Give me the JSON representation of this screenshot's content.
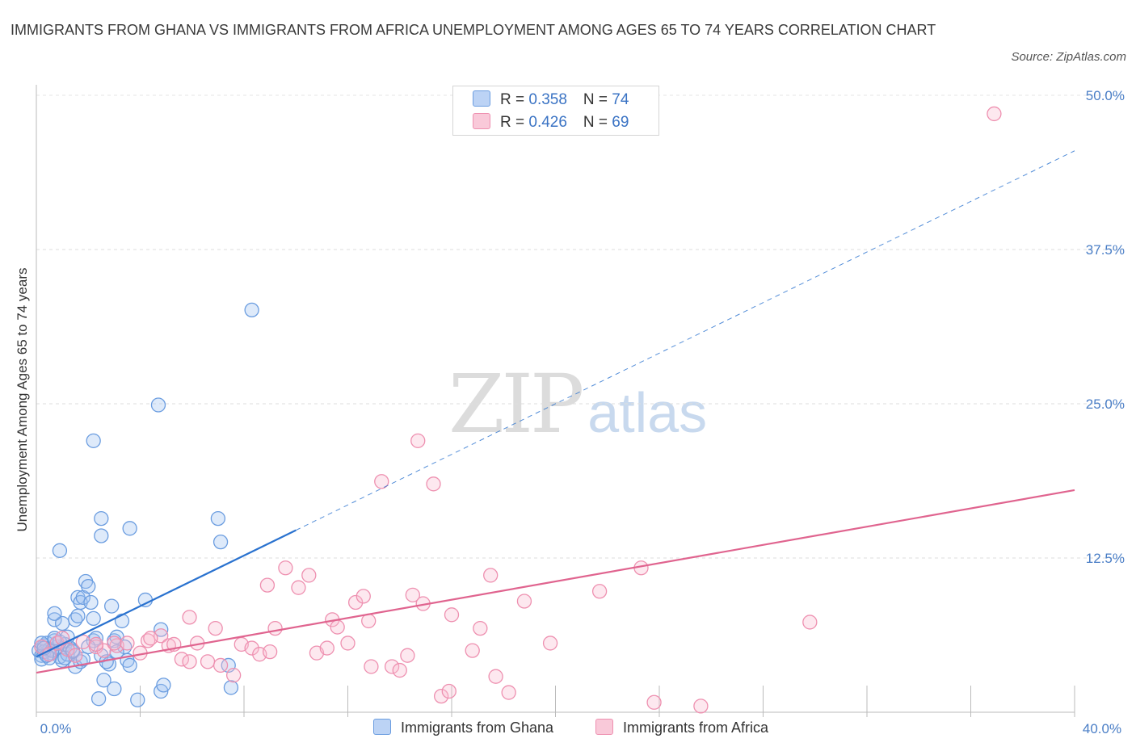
{
  "title": "IMMIGRANTS FROM GHANA VS IMMIGRANTS FROM AFRICA UNEMPLOYMENT AMONG AGES 65 TO 74 YEARS CORRELATION CHART",
  "source": "Source: ZipAtlas.com",
  "watermark": {
    "zip": "ZIP",
    "atlas": "atlas"
  },
  "legend": {
    "rows": [
      {
        "r_label": "R = ",
        "r_value": "0.358",
        "n_label": "N = ",
        "n_value": "74"
      },
      {
        "r_label": "R = ",
        "r_value": "0.426",
        "n_label": "N = ",
        "n_value": "69"
      }
    ]
  },
  "colors": {
    "ghana": "#6b9de0",
    "ghana_line": "#2a72cf",
    "africa": "#ee90b0",
    "africa_line": "#e0648f",
    "tick": "#4a7ec6"
  },
  "chart_data": {
    "type": "scatter",
    "title": "IMMIGRANTS FROM GHANA VS IMMIGRANTS FROM AFRICA UNEMPLOYMENT AMONG AGES 65 TO 74 YEARS CORRELATION CHART",
    "xlabel": "",
    "ylabel": "Unemployment Among Ages 65 to 74 years",
    "xlim": [
      0,
      40
    ],
    "ylim": [
      0,
      50
    ],
    "x_tick_labels": [
      "0.0%",
      "40.0%"
    ],
    "y_ticks": [
      {
        "value": 12.5,
        "label": "12.5%"
      },
      {
        "value": 25,
        "label": "25.0%"
      },
      {
        "value": 37.5,
        "label": "37.5%"
      },
      {
        "value": 50,
        "label": "50.0%"
      }
    ],
    "grid": "horizontal dashed",
    "legend_position": "bottom",
    "series": [
      {
        "name": "Immigrants from Ghana",
        "r": 0.358,
        "n": 74,
        "trend": {
          "x0": 0,
          "y0": 4.5,
          "x_solid_end": 10.0,
          "x1": 40,
          "y1": 45.5
        },
        "points": [
          [
            0.1,
            5.0
          ],
          [
            0.2,
            4.6
          ],
          [
            0.3,
            5.4
          ],
          [
            0.2,
            4.3
          ],
          [
            0.4,
            5.6
          ],
          [
            0.5,
            5.1
          ],
          [
            0.6,
            4.8
          ],
          [
            0.3,
            4.9
          ],
          [
            0.8,
            5.3
          ],
          [
            0.9,
            4.5
          ],
          [
            1.0,
            4.2
          ],
          [
            1.1,
            5.5
          ],
          [
            1.2,
            4.7
          ],
          [
            0.7,
            5.8
          ],
          [
            0.5,
            4.4
          ],
          [
            1.3,
            5.2
          ],
          [
            0.2,
            5.6
          ],
          [
            0.6,
            5.0
          ],
          [
            1.5,
            3.7
          ],
          [
            1.7,
            4.1
          ],
          [
            0.9,
            5.7
          ],
          [
            1.4,
            4.9
          ],
          [
            1.1,
            4.4
          ],
          [
            0.4,
            4.6
          ],
          [
            0.7,
            6.0
          ],
          [
            0.7,
            7.5
          ],
          [
            1.0,
            7.2
          ],
          [
            1.5,
            7.5
          ],
          [
            1.6,
            7.8
          ],
          [
            2.2,
            7.6
          ],
          [
            0.7,
            8.0
          ],
          [
            1.6,
            9.3
          ],
          [
            1.7,
            8.9
          ],
          [
            1.8,
            9.3
          ],
          [
            2.1,
            8.9
          ],
          [
            2.9,
            8.6
          ],
          [
            3.3,
            7.4
          ],
          [
            4.2,
            9.1
          ],
          [
            1.9,
            10.6
          ],
          [
            2.0,
            10.2
          ],
          [
            0.9,
            13.1
          ],
          [
            2.5,
            15.7
          ],
          [
            2.5,
            14.3
          ],
          [
            3.6,
            14.9
          ],
          [
            2.2,
            22.0
          ],
          [
            4.7,
            24.9
          ],
          [
            8.3,
            32.6
          ],
          [
            7.0,
            15.7
          ],
          [
            7.1,
            13.8
          ],
          [
            1.2,
            6.1
          ],
          [
            2.2,
            5.8
          ],
          [
            2.3,
            6.0
          ],
          [
            3.0,
            5.8
          ],
          [
            3.1,
            6.1
          ],
          [
            3.4,
            5.3
          ],
          [
            3.5,
            4.2
          ],
          [
            3.6,
            3.8
          ],
          [
            2.5,
            4.6
          ],
          [
            2.8,
            3.9
          ],
          [
            2.7,
            4.1
          ],
          [
            2.6,
            2.6
          ],
          [
            3.0,
            1.9
          ],
          [
            2.4,
            1.1
          ],
          [
            3.9,
            1.0
          ],
          [
            4.8,
            1.7
          ],
          [
            4.9,
            2.2
          ],
          [
            7.5,
            2.0
          ],
          [
            7.4,
            3.8
          ],
          [
            4.8,
            6.7
          ],
          [
            3.1,
            4.9
          ],
          [
            2.0,
            5.3
          ],
          [
            1.8,
            4.3
          ],
          [
            0.3,
            5.2
          ],
          [
            1.4,
            5.0
          ]
        ]
      },
      {
        "name": "Immigrants from Africa",
        "r": 0.426,
        "n": 69,
        "trend": {
          "x0": 0,
          "y0": 3.2,
          "x1": 40,
          "y1": 18.0
        },
        "points": [
          [
            0.2,
            5.3
          ],
          [
            0.5,
            4.7
          ],
          [
            0.8,
            5.6
          ],
          [
            1.2,
            5.1
          ],
          [
            1.5,
            4.6
          ],
          [
            1.8,
            5.7
          ],
          [
            2.3,
            5.3
          ],
          [
            2.6,
            5.0
          ],
          [
            3.1,
            5.4
          ],
          [
            3.5,
            5.6
          ],
          [
            4.0,
            4.8
          ],
          [
            4.3,
            5.8
          ],
          [
            4.8,
            6.2
          ],
          [
            5.1,
            5.4
          ],
          [
            5.3,
            5.5
          ],
          [
            5.6,
            4.3
          ],
          [
            5.9,
            4.1
          ],
          [
            6.2,
            5.6
          ],
          [
            6.6,
            4.1
          ],
          [
            7.1,
            3.8
          ],
          [
            7.6,
            3.0
          ],
          [
            7.9,
            5.5
          ],
          [
            8.3,
            5.2
          ],
          [
            8.6,
            4.7
          ],
          [
            9.0,
            4.9
          ],
          [
            9.2,
            6.8
          ],
          [
            9.6,
            11.7
          ],
          [
            8.9,
            10.3
          ],
          [
            10.1,
            10.1
          ],
          [
            10.5,
            11.1
          ],
          [
            10.8,
            4.8
          ],
          [
            11.2,
            5.2
          ],
          [
            11.4,
            7.5
          ],
          [
            11.6,
            6.9
          ],
          [
            12.0,
            5.6
          ],
          [
            12.3,
            8.9
          ],
          [
            12.6,
            9.4
          ],
          [
            12.8,
            7.4
          ],
          [
            12.9,
            3.7
          ],
          [
            13.3,
            18.7
          ],
          [
            13.7,
            3.7
          ],
          [
            14.0,
            3.4
          ],
          [
            14.3,
            4.6
          ],
          [
            14.5,
            9.5
          ],
          [
            14.7,
            22.0
          ],
          [
            14.9,
            8.8
          ],
          [
            15.3,
            18.5
          ],
          [
            15.6,
            1.3
          ],
          [
            15.9,
            1.7
          ],
          [
            16.0,
            7.9
          ],
          [
            16.8,
            5.0
          ],
          [
            17.1,
            6.8
          ],
          [
            17.5,
            11.1
          ],
          [
            17.7,
            2.9
          ],
          [
            18.2,
            1.6
          ],
          [
            18.8,
            9.0
          ],
          [
            19.8,
            5.6
          ],
          [
            21.7,
            9.8
          ],
          [
            23.3,
            11.7
          ],
          [
            23.8,
            0.8
          ],
          [
            25.6,
            0.5
          ],
          [
            29.8,
            7.3
          ],
          [
            36.9,
            48.5
          ],
          [
            6.9,
            6.8
          ],
          [
            5.9,
            7.7
          ],
          [
            3.0,
            5.6
          ],
          [
            1.0,
            6.0
          ],
          [
            2.3,
            5.5
          ],
          [
            4.4,
            6.0
          ]
        ]
      }
    ]
  },
  "bottom_legend": {
    "items": [
      {
        "label": "Immigrants from Ghana"
      },
      {
        "label": "Immigrants from Africa"
      }
    ]
  }
}
